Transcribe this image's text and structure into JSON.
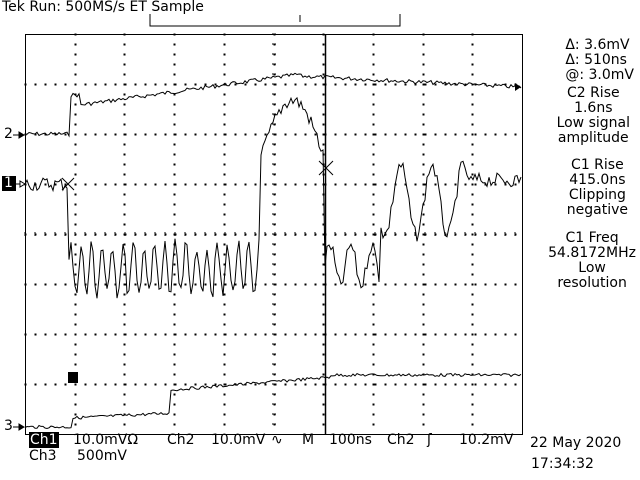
{
  "header": {
    "status": "Tek Run: 500MS/s ET Sample"
  },
  "channels": {
    "ch2_marker": "2",
    "ch1_marker": "1",
    "ch3_marker": "3"
  },
  "readouts": {
    "cursor_delta_v": "Δ: 3.6mV",
    "cursor_delta_t": "Δ: 510ns",
    "cursor_at": "@: 3.0mV",
    "meas1_title": "C2 Rise",
    "meas1_value": "1.6ns",
    "meas1_note1": "Low signal",
    "meas1_note2": "amplitude",
    "meas2_title": "C1 Rise",
    "meas2_value": "415.0ns",
    "meas2_note1": "Clipping",
    "meas2_note2": "negative",
    "meas3_title": "C1 Freq",
    "meas3_value": "54.8172MHz",
    "meas3_note1": "Low",
    "meas3_note2": "resolution"
  },
  "footer": {
    "ch1_label": "Ch1",
    "ch1_scale": "10.0mVΩ",
    "ch2_label": "Ch2",
    "ch2_scale": "10.0mV",
    "ch2_bw_symbol": "∿",
    "timebase_label": "M",
    "timebase_value": "100ns",
    "trigger_source": "Ch2",
    "trigger_slope_symbol": "ʃ",
    "trigger_level": "10.2mV",
    "ch3_label": "Ch3",
    "ch3_scale": "500mV",
    "date": "22 May 2020",
    "time": "17:34:32"
  }
}
